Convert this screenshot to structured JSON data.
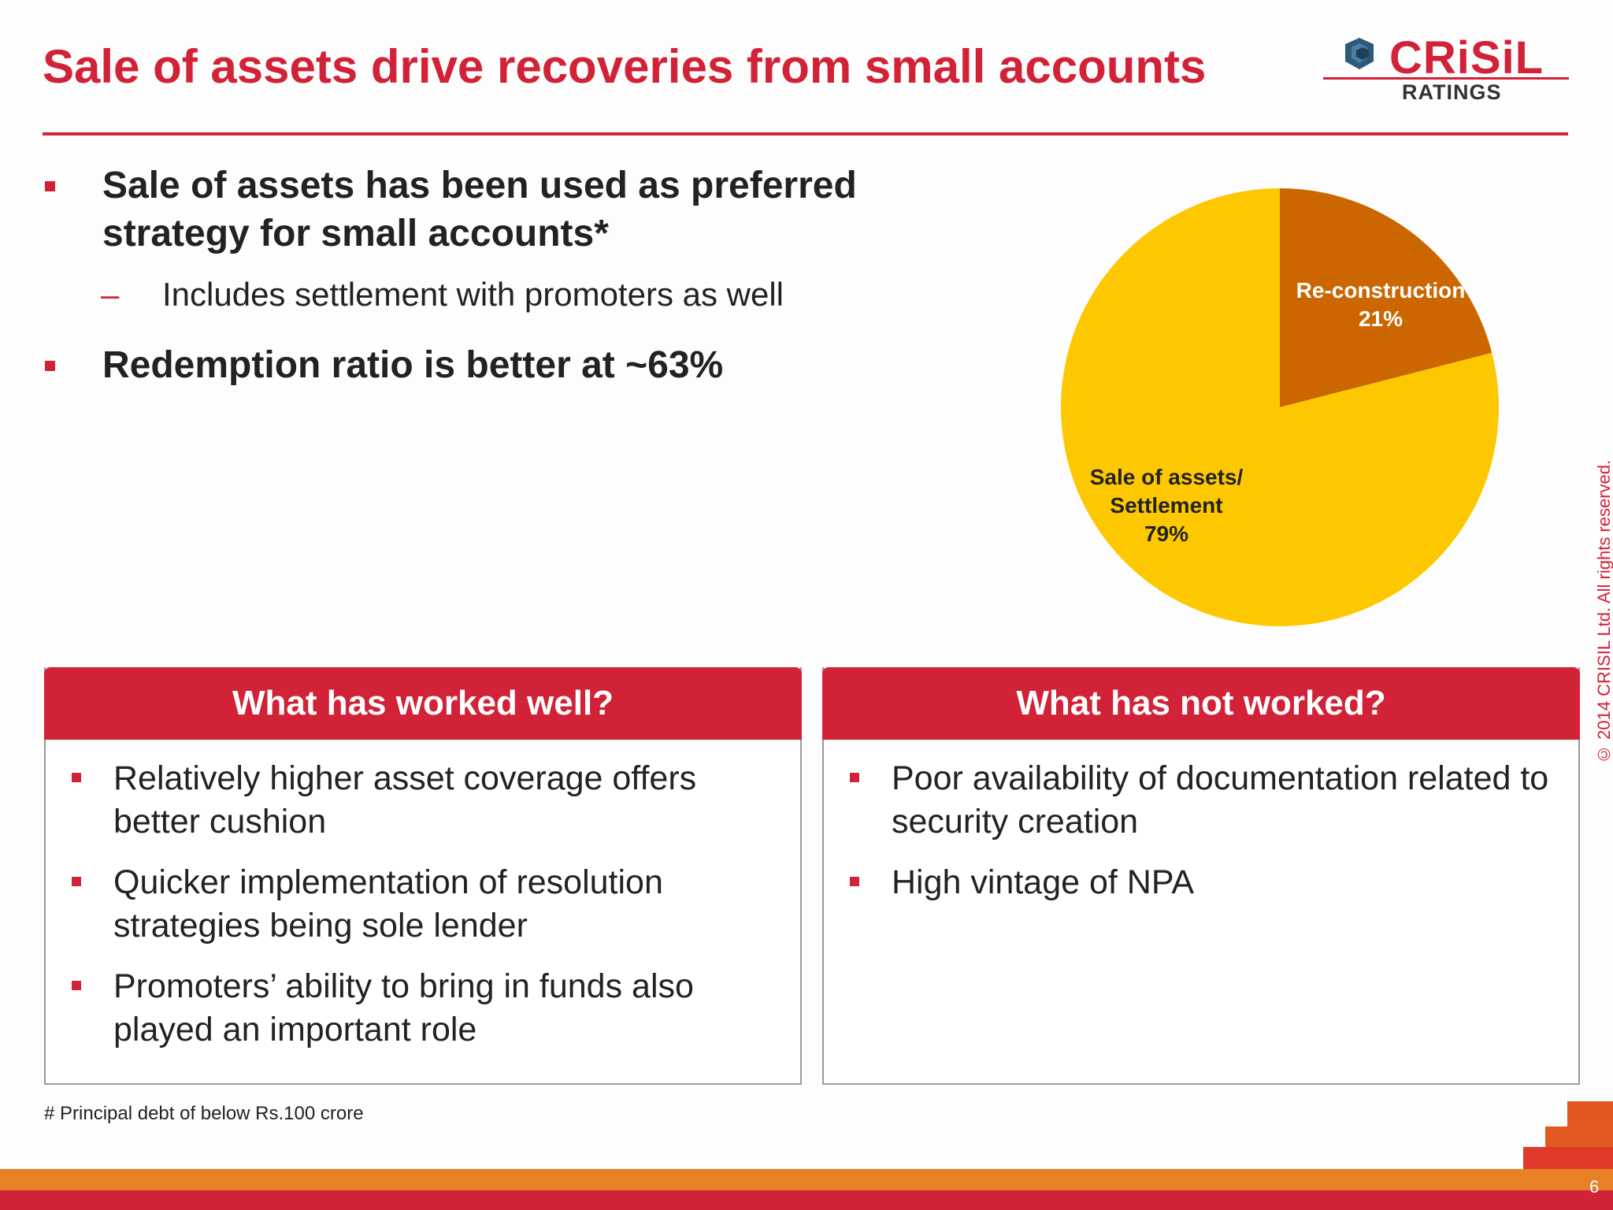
{
  "slide": {
    "title": "Sale of assets drive recoveries from small accounts",
    "logo_text": "CRiSiL",
    "logo_sub": "RATINGS",
    "bullets": [
      {
        "text": "Sale of assets has been used as preferred strategy for small accounts*",
        "sub": [
          "Includes settlement with promoters as well"
        ]
      },
      {
        "text": "Redemption ratio is better at ~63%"
      }
    ],
    "panels": [
      {
        "heading": "What has worked well?",
        "items": [
          "Relatively higher asset coverage offers better cushion",
          "Quicker implementation of resolution strategies being sole lender",
          "Promoters’ ability to bring in funds also played an important role"
        ]
      },
      {
        "heading": "What has not worked?",
        "items": [
          "Poor availability of documentation related to security creation",
          "High vintage of NPA"
        ]
      }
    ],
    "footnote": "# Principal debt of below Rs.100 crore",
    "copyright": "© 2014 CRISIL Ltd. All rights reserved.",
    "page_number": "6",
    "colors": {
      "brand_red": "#d22237",
      "orange": "#e88025"
    }
  },
  "chart_data": {
    "type": "pie",
    "title": "",
    "slices": [
      {
        "label": "Re-construction",
        "pct_label": "21%",
        "value": 21,
        "color": "#cc6600"
      },
      {
        "label": "Sale of assets/ Settlement",
        "pct_label": "79%",
        "value": 79,
        "color": "#fec800"
      }
    ],
    "start_angle": "12 o'clock",
    "direction": "clockwise",
    "legend": "none (labels inside slices)"
  }
}
